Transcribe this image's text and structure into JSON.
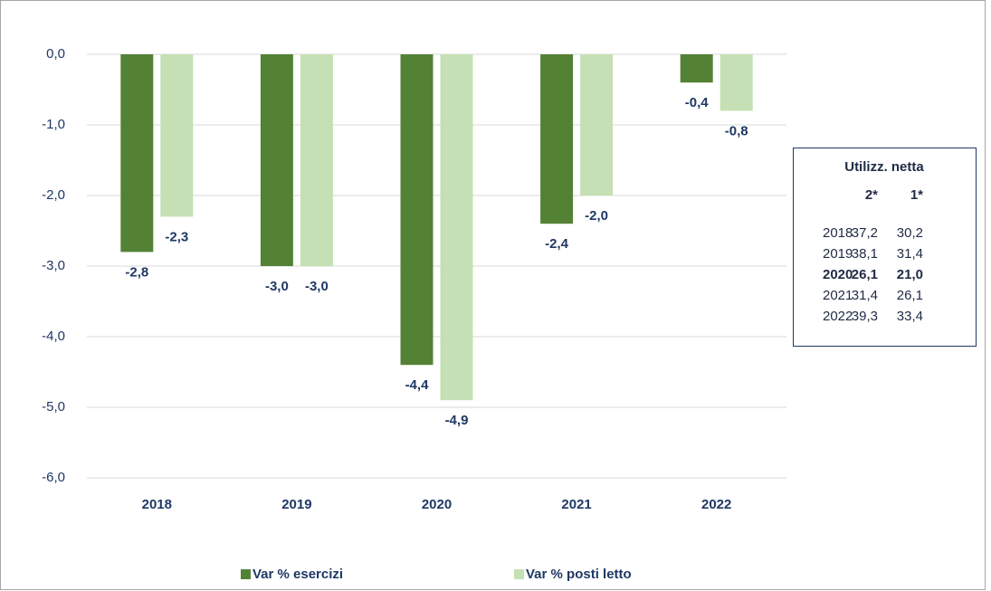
{
  "chart_data": {
    "type": "bar",
    "categories": [
      "2018",
      "2019",
      "2020",
      "2021",
      "2022"
    ],
    "series": [
      {
        "name": "Var % esercizi",
        "color": "#548235",
        "values": [
          -2.8,
          -3.0,
          -4.4,
          -2.4,
          -0.4
        ],
        "value_labels": [
          "-2,8",
          "-3,0",
          "-4,4",
          "-2,4",
          "-0,4"
        ]
      },
      {
        "name": "Var % posti letto",
        "color": "#c5e0b4",
        "values": [
          -2.3,
          -3.0,
          -4.9,
          -2.0,
          -0.8
        ],
        "value_labels": [
          "-2,3",
          "-3,0",
          "-4,9",
          "-2,0",
          "-0,8"
        ]
      }
    ],
    "ylim": [
      -6,
      0
    ],
    "yticks": [
      {
        "value": 0,
        "label": "0,0"
      },
      {
        "value": -1,
        "label": "-1,0"
      },
      {
        "value": -2,
        "label": "-2,0"
      },
      {
        "value": -3,
        "label": "-3,0"
      },
      {
        "value": -4,
        "label": "-4,0"
      },
      {
        "value": -5,
        "label": "-5,0"
      },
      {
        "value": -6,
        "label": "-6,0"
      }
    ],
    "grid": true,
    "legend": "bottom"
  },
  "table": {
    "title": "Utilizz. netta",
    "columns": [
      "2*",
      "1*"
    ],
    "rows": [
      [
        "2018",
        "37,2",
        "30,2"
      ],
      [
        "2019",
        "38,1",
        "31,4"
      ],
      [
        "2020",
        "26,1",
        "21,0"
      ],
      [
        "2021",
        "31,4",
        "26,1"
      ],
      [
        "2022",
        "39,3",
        "33,4"
      ]
    ],
    "highlight_row": 2
  }
}
